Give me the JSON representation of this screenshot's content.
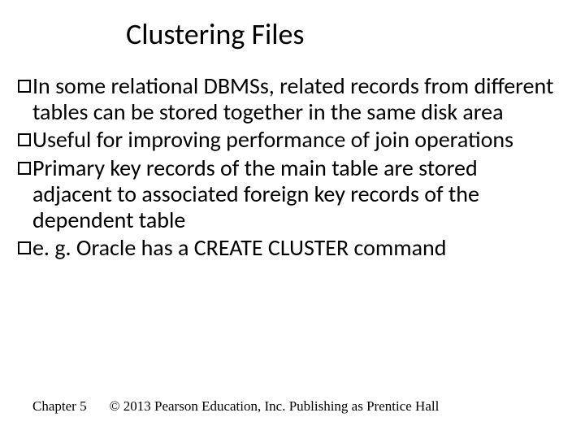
{
  "colors": {
    "background": "#ffffff",
    "text": "#000000",
    "bullet_border": "#000000"
  },
  "typography": {
    "title_fontsize": 36,
    "body_fontsize": 28,
    "footer_fontsize": 17,
    "title_font": "Calibri",
    "body_font": "Calibri",
    "footer_font": "Times New Roman"
  },
  "title": "Clustering Files",
  "bullets": [
    "In some relational DBMSs, related records from different tables can be stored together in the same disk area",
    "Useful for improving performance of join operations",
    "Primary key records of the main table are stored adjacent to associated foreign key records of the dependent table",
    "e. g. Oracle has a CREATE CLUSTER command"
  ],
  "footer": {
    "chapter": "Chapter 5",
    "copyright": "© 2013 Pearson Education, Inc.  Publishing as Prentice Hall"
  }
}
